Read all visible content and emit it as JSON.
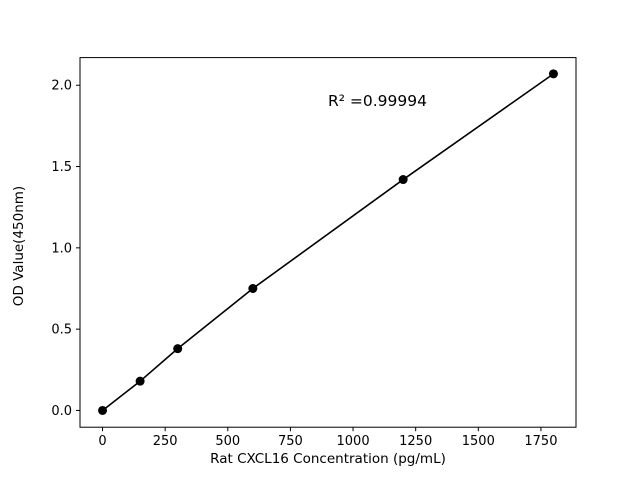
{
  "chart_data": {
    "type": "line",
    "title": "",
    "xlabel": "Rat CXCL16 Concentration (pg/mL)",
    "ylabel": "OD Value(450nm)",
    "x": [
      0,
      150,
      300,
      600,
      1200,
      1800
    ],
    "y": [
      0.0,
      0.18,
      0.38,
      0.75,
      1.42,
      2.07
    ],
    "xlim": [
      -90,
      1890
    ],
    "ylim": [
      -0.103,
      2.17
    ],
    "xticks": [
      0,
      250,
      500,
      750,
      1000,
      1250,
      1500,
      1750
    ],
    "yticks": [
      0.0,
      0.5,
      1.0,
      1.5,
      2.0
    ],
    "annotation": {
      "text": "R² =0.99994",
      "x": 900,
      "y": 1.9
    },
    "line_color": "#000000",
    "marker_color": "#000000",
    "axis_color": "#000000",
    "background": "#ffffff",
    "grid": false,
    "legend": null,
    "marker_radius": 4.5
  }
}
